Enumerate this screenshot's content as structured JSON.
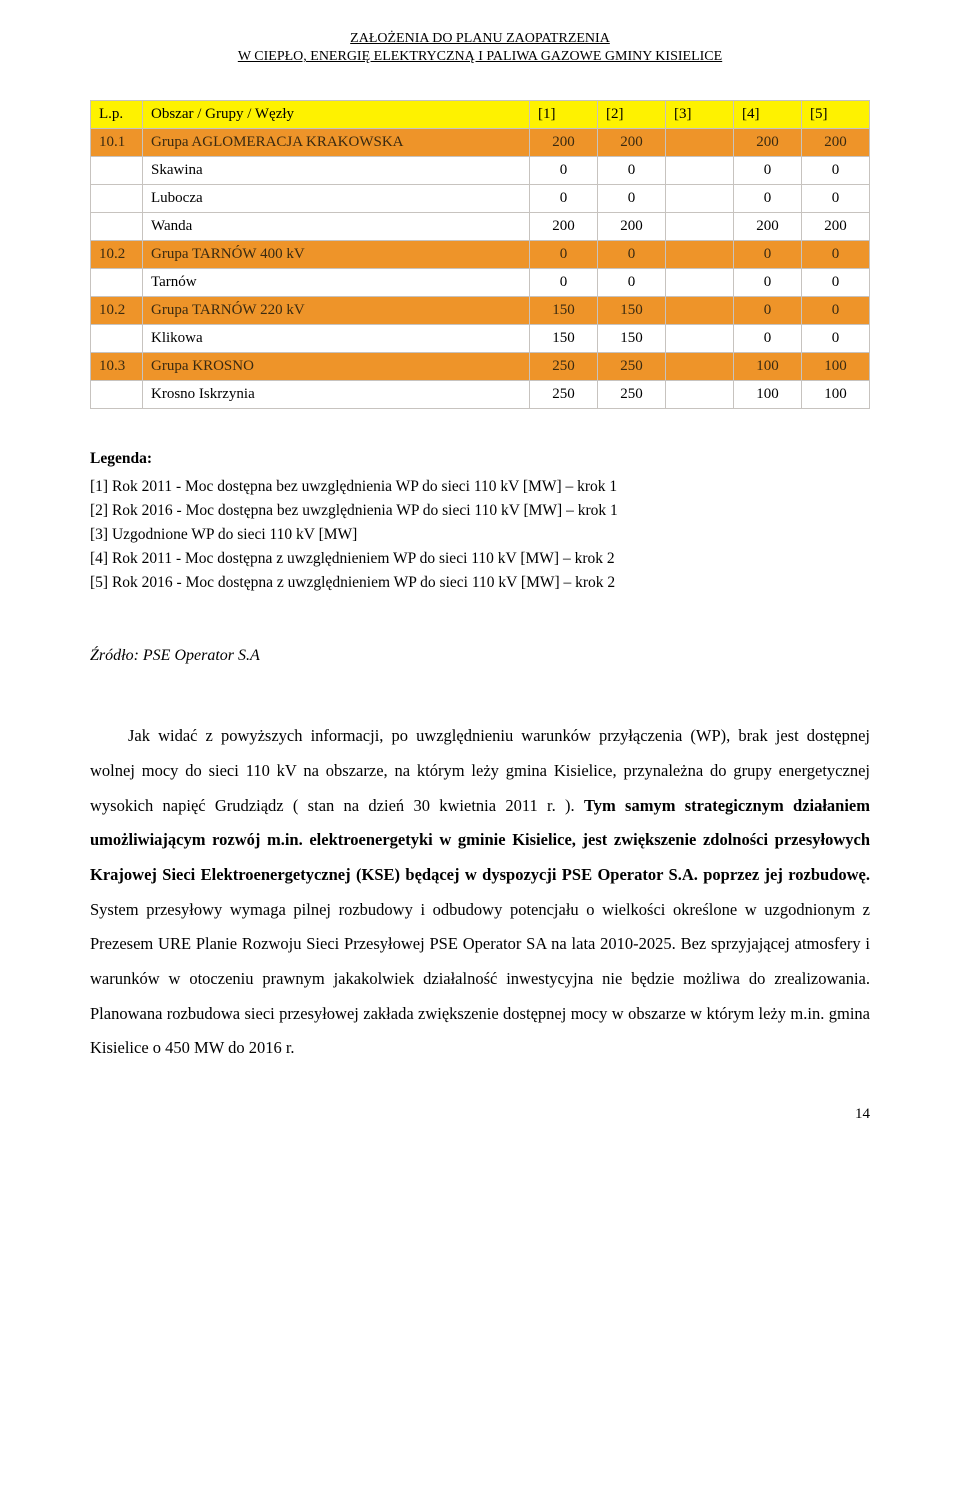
{
  "header": {
    "line1": "ZAŁOŻENIA DO PLANU ZAOPATRZENIA",
    "line2": "W CIEPŁO, ENERGIĘ ELEKTRYCZNĄ I PALIWA GAZOWE GMINY KISIELICE"
  },
  "table": {
    "columns": [
      "L.p.",
      "Obszar / Grupy / Węzły",
      "[1]",
      "[2]",
      "[3]",
      "[4]",
      "[5]"
    ],
    "rows": [
      {
        "style": "orange",
        "cells": [
          "10.1",
          "Grupa AGLOMERACJA KRAKOWSKA",
          "200",
          "200",
          "",
          "200",
          "200"
        ]
      },
      {
        "style": "white",
        "cells": [
          "",
          "Skawina",
          "0",
          "0",
          "",
          "0",
          "0"
        ]
      },
      {
        "style": "white",
        "cells": [
          "",
          "Lubocza",
          "0",
          "0",
          "",
          "0",
          "0"
        ]
      },
      {
        "style": "white",
        "cells": [
          "",
          "Wanda",
          "200",
          "200",
          "",
          "200",
          "200"
        ]
      },
      {
        "style": "orange",
        "cells": [
          "10.2",
          "Grupa TARNÓW 400 kV",
          "0",
          "0",
          "",
          "0",
          "0"
        ]
      },
      {
        "style": "white",
        "cells": [
          "",
          "Tarnów",
          "0",
          "0",
          "",
          "0",
          "0"
        ]
      },
      {
        "style": "orange",
        "cells": [
          "10.2",
          "Grupa TARNÓW 220 kV",
          "150",
          "150",
          "",
          "0",
          "0"
        ]
      },
      {
        "style": "white",
        "cells": [
          "",
          "Klikowa",
          "150",
          "150",
          "",
          "0",
          "0"
        ]
      },
      {
        "style": "orange",
        "cells": [
          "10.3",
          "Grupa KROSNO",
          "250",
          "250",
          "",
          "100",
          "100"
        ]
      },
      {
        "style": "white",
        "cells": [
          "",
          "Krosno Iskrzynia",
          "250",
          "250",
          "",
          "100",
          "100"
        ]
      }
    ]
  },
  "legend": {
    "title": "Legenda:",
    "lines": [
      "[1] Rok 2011 - Moc dostępna bez uwzględnienia WP do sieci 110 kV [MW] – krok 1",
      "[2] Rok 2016 - Moc dostępna bez uwzględnienia WP do sieci 110 kV [MW] – krok 1",
      "[3] Uzgodnione WP do sieci 110 kV [MW]",
      "[4] Rok 2011 - Moc dostępna z uwzględnieniem WP do sieci 110 kV [MW] – krok 2",
      "[5] Rok 2016 - Moc dostępna z uwzględnieniem WP do sieci 110 kV [MW] – krok 2"
    ]
  },
  "source": "Źródło: PSE Operator S.A",
  "body": {
    "p": "Jak widać z powyższych informacji, po uwzględnieniu warunków przyłączenia (WP), brak jest dostępnej wolnej mocy do sieci 110 kV na obszarze, na którym leży gmina Kisielice, przynależna do grupy energetycznej wysokich napięć Grudziądz ( stan na  dzień 30 kwietnia 2011 r. ). ",
    "bold": "Tym samym strategicznym działaniem umożliwiającym rozwój m.in. elektroenergetyki w gminie Kisielice, jest zwiększenie zdolności przesyłowych Krajowej Sieci Elektroenergetycznej (KSE) będącej w dyspozycji PSE Operator S.A. poprzez jej rozbudowę.",
    "after": " System przesyłowy wymaga pilnej rozbudowy i odbudowy potencjału o wielkości określone w uzgodnionym z Prezesem URE Planie Rozwoju Sieci Przesyłowej PSE Operator SA na lata 2010-2025. Bez sprzyjającej atmosfery i warunków w otoczeniu prawnym jakakolwiek działalność inwestycyjna nie będzie możliwa do zrealizowania. Planowana rozbudowa sieci przesyłowej zakłada zwiększenie dostępnej mocy w obszarze w którym leży m.in. gmina Kisielice o 450 MW do 2016 r."
  },
  "page_number": "14"
}
